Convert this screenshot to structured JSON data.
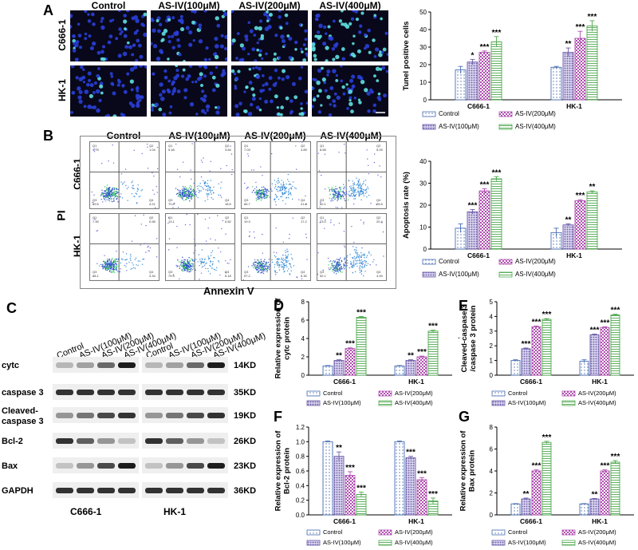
{
  "panels": {
    "A": "A",
    "B": "B",
    "C": "C",
    "D": "D",
    "E": "E",
    "F": "F",
    "G": "G"
  },
  "groups": [
    "Control",
    "AS-IV(100μM)",
    "AS-IV(200μM)",
    "AS-IV(400μM)"
  ],
  "cells": [
    "C666-1",
    "HK-1"
  ],
  "flow": {
    "xlabel": "Annexin V",
    "ylabel": "PI",
    "quadrants": [
      [
        [
          "Q1",
          "Q2",
          "Q3",
          "Q4"
        ],
        [
          "Q1",
          "Q2",
          "Q3",
          "Q4"
        ],
        [
          "Q1",
          "Q2",
          "Q3",
          "Q4"
        ],
        [
          "Q1",
          "Q2",
          "Q3",
          "Q4"
        ]
      ],
      [
        [
          "Q1",
          "Q2",
          "Q3",
          "Q4"
        ],
        [
          "Q1",
          "Q2",
          "Q3",
          "Q4"
        ],
        [
          "Q1",
          "Q2",
          "Q3",
          "Q4"
        ],
        [
          "Q1",
          "Q2",
          "Q3",
          "Q4"
        ]
      ]
    ],
    "values": [
      [
        [
          "4.75",
          "1.04",
          "89.6",
          "4.21"
        ],
        [
          "5.48",
          "3.84",
          "70.8",
          "18.6"
        ],
        [
          "7.03",
          "4.89",
          "66.7",
          "21.8"
        ],
        [
          "8.68",
          "5.09",
          "60.1",
          "26.6"
        ]
      ],
      [
        [
          "7.90",
          "0.58",
          "88.1",
          "3.34"
        ],
        [
          "13.1",
          "0.82",
          "79.9",
          "6.18"
        ],
        [
          "19.3",
          "17.2",
          "57.2",
          "6.30"
        ],
        [
          "23.0",
          "20.4",
          "52.1",
          "4.49"
        ]
      ]
    ]
  },
  "blot": {
    "column_labels": [
      "Control",
      "AS-IV(100μM)",
      "AS-IV(200μM)",
      "AS-IV(400μM)",
      "Control",
      "AS-IV(100μM)",
      "AS-IV(200μM)",
      "AS-IV(400μM)"
    ],
    "proteins": [
      "cytc",
      "caspase 3",
      "Cleaved-\ncaspase 3",
      "Bcl-2",
      "Bax",
      "GAPDH"
    ],
    "sizes": [
      "14KD",
      "35KD",
      "19KD",
      "26KD",
      "23KD",
      "36KD"
    ],
    "cell_labels": [
      "C666-1",
      "HK-1"
    ]
  },
  "legend": {
    "items": [
      "Control",
      "AS-IV(100μM)",
      "AS-IV(200μM)",
      "AS-IV(400μM)"
    ],
    "colors": [
      "#4a6fb5",
      "#6b5ba8",
      "#b04fb0",
      "#4fa84f"
    ]
  },
  "chart_data": [
    {
      "id": "A",
      "type": "bar",
      "ylabel": "Tunel positive cells",
      "categories": [
        "C666-1",
        "HK-1"
      ],
      "ylim": [
        0,
        50
      ],
      "yticks": [
        0,
        10,
        20,
        30,
        40,
        50
      ],
      "series": [
        {
          "name": "Control",
          "values": [
            17,
            18.5
          ],
          "err": [
            2,
            0.5
          ]
        },
        {
          "name": "AS-IV(100μM)",
          "values": [
            21.5,
            27
          ],
          "err": [
            1.5,
            2.5
          ]
        },
        {
          "name": "AS-IV(200μM)",
          "values": [
            27,
            35
          ],
          "err": [
            0.8,
            4
          ]
        },
        {
          "name": "AS-IV(400μM)",
          "values": [
            33,
            42
          ],
          "err": [
            3,
            3
          ]
        }
      ],
      "sig": [
        [
          "",
          "*",
          "***",
          "***"
        ],
        [
          "",
          "**",
          "***",
          "***"
        ]
      ]
    },
    {
      "id": "B",
      "type": "bar",
      "ylabel": "Apoptosis rate (%)",
      "categories": [
        "C666-1",
        "HK-1"
      ],
      "ylim": [
        0,
        40
      ],
      "yticks": [
        0,
        10,
        20,
        30,
        40
      ],
      "series": [
        {
          "name": "Control",
          "values": [
            9.5,
            7.5
          ],
          "err": [
            2,
            2
          ]
        },
        {
          "name": "AS-IV(100μM)",
          "values": [
            17,
            11
          ],
          "err": [
            1,
            0.5
          ]
        },
        {
          "name": "AS-IV(200μM)",
          "values": [
            26.5,
            22
          ],
          "err": [
            1,
            0.5
          ]
        },
        {
          "name": "AS-IV(400μM)",
          "values": [
            32,
            26
          ],
          "err": [
            1,
            0.5
          ]
        }
      ],
      "sig": [
        [
          "",
          "***",
          "***",
          "***"
        ],
        [
          "",
          "**",
          "***",
          "**"
        ]
      ]
    },
    {
      "id": "D",
      "type": "bar",
      "ylabel": "Relative expression of\ncytc protein",
      "categories": [
        "C666-1",
        "HK-1"
      ],
      "ylim": [
        0,
        8
      ],
      "yticks": [
        0,
        2,
        4,
        6,
        8
      ],
      "series": [
        {
          "name": "Control",
          "values": [
            1,
            1
          ],
          "err": [
            0.05,
            0.05
          ]
        },
        {
          "name": "AS-IV(100μM)",
          "values": [
            1.6,
            1.6
          ],
          "err": [
            0.08,
            0.08
          ]
        },
        {
          "name": "AS-IV(200μM)",
          "values": [
            2.9,
            2
          ],
          "err": [
            0.08,
            0.08
          ]
        },
        {
          "name": "AS-IV(400μM)",
          "values": [
            6.3,
            4.8
          ],
          "err": [
            0.1,
            0.1
          ]
        }
      ],
      "sig": [
        [
          "",
          "**",
          "***",
          "***"
        ],
        [
          "",
          "**",
          "***",
          "***"
        ]
      ]
    },
    {
      "id": "E",
      "type": "bar",
      "ylabel": "Relative expression of\nCleaved-caspase 3\n/caspase 3 protein",
      "categories": [
        "C666-1",
        "HK-1"
      ],
      "ylim": [
        0,
        5
      ],
      "yticks": [
        0,
        1,
        2,
        3,
        4,
        5
      ],
      "series": [
        {
          "name": "Control",
          "values": [
            1,
            0.95
          ],
          "err": [
            0.05,
            0.1
          ]
        },
        {
          "name": "AS-IV(100μM)",
          "values": [
            1.8,
            2.75
          ],
          "err": [
            0.05,
            0.05
          ]
        },
        {
          "name": "AS-IV(200μM)",
          "values": [
            3.3,
            3.25
          ],
          "err": [
            0.05,
            0.05
          ]
        },
        {
          "name": "AS-IV(400μM)",
          "values": [
            3.8,
            4.1
          ],
          "err": [
            0.05,
            0.05
          ]
        }
      ],
      "sig": [
        [
          "",
          "***",
          "***",
          "***"
        ],
        [
          "",
          "***",
          "***",
          "***"
        ]
      ]
    },
    {
      "id": "F",
      "type": "bar",
      "ylabel": "Relative expression of\nBcl-2 protein",
      "categories": [
        "C666-1",
        "HK-1"
      ],
      "ylim": [
        0,
        1.2
      ],
      "yticks": [
        0,
        0.2,
        0.4,
        0.6,
        0.8,
        1.0,
        1.2
      ],
      "series": [
        {
          "name": "Control",
          "values": [
            1,
            1
          ],
          "err": [
            0.01,
            0.01
          ]
        },
        {
          "name": "AS-IV(100μM)",
          "values": [
            0.8,
            0.78
          ],
          "err": [
            0.06,
            0.02
          ]
        },
        {
          "name": "AS-IV(200μM)",
          "values": [
            0.54,
            0.48
          ],
          "err": [
            0.05,
            0.03
          ]
        },
        {
          "name": "AS-IV(400μM)",
          "values": [
            0.28,
            0.19
          ],
          "err": [
            0.03,
            0.04
          ]
        }
      ],
      "sig": [
        [
          "",
          "**",
          "***",
          "***"
        ],
        [
          "",
          "***",
          "***",
          "***"
        ]
      ]
    },
    {
      "id": "G",
      "type": "bar",
      "ylabel": "Relative expression of\nBax protein",
      "categories": [
        "C666-1",
        "HK-1"
      ],
      "ylim": [
        0,
        8
      ],
      "yticks": [
        0,
        2,
        4,
        6,
        8
      ],
      "series": [
        {
          "name": "Control",
          "values": [
            1,
            1
          ],
          "err": [
            0.03,
            0.03
          ]
        },
        {
          "name": "AS-IV(100μM)",
          "values": [
            1.45,
            1.45
          ],
          "err": [
            0.08,
            0.05
          ]
        },
        {
          "name": "AS-IV(200μM)",
          "values": [
            4,
            4
          ],
          "err": [
            0.1,
            0.1
          ]
        },
        {
          "name": "AS-IV(400μM)",
          "values": [
            6.6,
            4.8
          ],
          "err": [
            0.1,
            0.15
          ]
        }
      ],
      "sig": [
        [
          "",
          "**",
          "***",
          "***"
        ],
        [
          "",
          "**",
          "***",
          "***"
        ]
      ]
    }
  ]
}
